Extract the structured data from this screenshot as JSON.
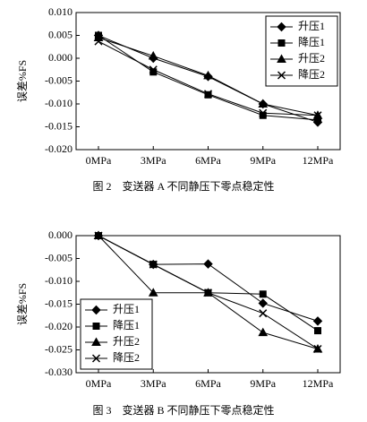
{
  "chart_data": [
    {
      "type": "line",
      "caption": "图 2　变送器 A 不同静压下零点稳定性",
      "y_label": "误差%FS",
      "categories": [
        "0MPa",
        "3MPa",
        "6MPa",
        "9MPa",
        "12MPa"
      ],
      "ylim": [
        -0.02,
        0.01
      ],
      "yticks": [
        {
          "value": -0.02,
          "label": "-0.020"
        },
        -0.015,
        {
          "value": -0.01,
          "label": "-0.010"
        },
        -0.005,
        {
          "value": 0,
          "label": "0.000"
        },
        0.005,
        {
          "value": 0.01,
          "label": "0.010"
        }
      ],
      "legend": "upper right",
      "series": [
        {
          "name": "升压1",
          "color": "#000000",
          "marker": "diamond",
          "values": [
            0.005,
            0.0,
            -0.004,
            -0.01,
            -0.014
          ]
        },
        {
          "name": "降压1",
          "color": "#000000",
          "marker": "square",
          "values": [
            0.005,
            -0.003,
            -0.008,
            -0.0125,
            -0.0135
          ]
        },
        {
          "name": "升压2",
          "color": "#000000",
          "marker": "triangle",
          "values": [
            0.0045,
            0.0005,
            -0.0038,
            -0.01,
            -0.0125
          ]
        },
        {
          "name": "降压2",
          "color": "#000000",
          "marker": "x",
          "values": [
            0.0037,
            -0.0025,
            -0.0078,
            -0.012,
            -0.0125
          ]
        }
      ]
    },
    {
      "type": "line",
      "caption": "图 3　变送器 B 不同静压下零点稳定性",
      "y_label": "误差%FS",
      "categories": [
        "0MPa",
        "3MPa",
        "6MPa",
        "9MPa",
        "12MPa"
      ],
      "ylim": [
        -0.03,
        0
      ],
      "yticks": [
        {
          "value": -0.03,
          "label": "-0.030"
        },
        -0.025,
        {
          "value": -0.02,
          "label": "-0.020"
        },
        -0.015,
        {
          "value": -0.01,
          "label": "-0.010"
        },
        -0.005,
        {
          "value": 0,
          "label": "0.000"
        }
      ],
      "legend": "lower left",
      "series": [
        {
          "name": "升压1",
          "color": "#000000",
          "marker": "diamond",
          "values": [
            0,
            -0.0063,
            -0.0062,
            -0.0148,
            -0.0187
          ]
        },
        {
          "name": "降压1",
          "color": "#000000",
          "marker": "square",
          "values": [
            0,
            -0.0063,
            -0.0125,
            -0.0128,
            -0.0208
          ]
        },
        {
          "name": "升压2",
          "color": "#000000",
          "marker": "triangle",
          "values": [
            0,
            -0.0125,
            -0.0125,
            -0.0212,
            -0.0248
          ]
        },
        {
          "name": "降压2",
          "color": "#000000",
          "marker": "x",
          "values": [
            0,
            -0.0063,
            -0.0125,
            -0.017,
            -0.0248
          ]
        }
      ]
    }
  ]
}
